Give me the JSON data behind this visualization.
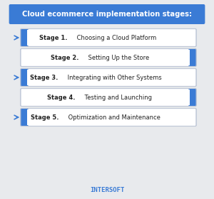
{
  "title": "Cloud ecommerce implementation stages:",
  "title_bg": "#3a7bd5",
  "title_color": "#ffffff",
  "bg_color": "#e8eaed",
  "stages": [
    "Stage 1. Choosing a Cloud Platform",
    "Stage 2. Setting Up the Store",
    "Stage 3. Integrating with Other Systems",
    "Stage 4. Testing and Launching",
    "Stage 5. Optimization and Maintenance"
  ],
  "stage_bold_prefix": [
    "Stage 1.",
    "Stage 2.",
    "Stage 3.",
    "Stage 4.",
    "Stage 5."
  ],
  "box_bg": "#ffffff",
  "box_border": "#c0c8d8",
  "accent_color": "#3a7bd5",
  "text_color": "#222222",
  "arrow_color": "#3a7bd5",
  "watermark": "INTERSOFT",
  "watermark_color": "#3a7bd5",
  "figsize": [
    3.0,
    2.8
  ],
  "dpi": 100
}
